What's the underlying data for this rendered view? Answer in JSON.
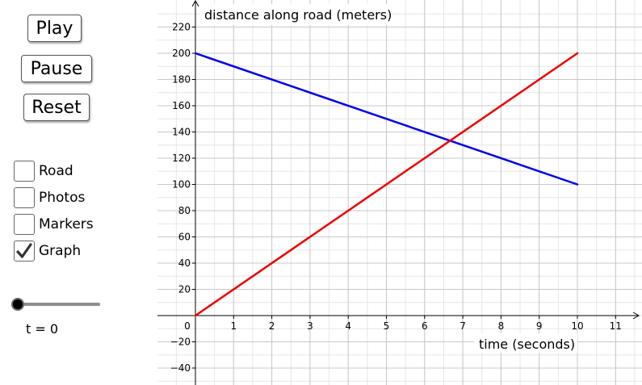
{
  "controls": {
    "play_label": "Play",
    "pause_label": "Pause",
    "reset_label": "Reset"
  },
  "checkboxes": [
    {
      "label": "Road",
      "checked": false
    },
    {
      "label": "Photos",
      "checked": false
    },
    {
      "label": "Markers",
      "checked": false
    },
    {
      "label": "Graph",
      "checked": true
    }
  ],
  "slider": {
    "value": 0,
    "min": 0,
    "max": 10,
    "label": "t = 0"
  },
  "colors": {
    "series_blue": "#0000ee",
    "series_red": "#ee0000",
    "grid": "#c8c8c8",
    "axis": "#000000"
  },
  "chart_data": {
    "type": "line",
    "xlabel": "time (seconds)",
    "ylabel": "distance along road (meters)",
    "x_ticks": [
      0,
      1,
      2,
      3,
      4,
      5,
      6,
      7,
      8,
      9,
      10,
      11
    ],
    "y_ticks": [
      -40,
      -20,
      20,
      40,
      60,
      80,
      100,
      120,
      140,
      160,
      180,
      200,
      220
    ],
    "xlim": [
      -0.5,
      11.8
    ],
    "ylim": [
      -50,
      237
    ],
    "grid": true,
    "series": [
      {
        "color": "#0000ee",
        "points": [
          [
            0,
            200
          ],
          [
            10,
            100
          ]
        ]
      },
      {
        "color": "#ee0000",
        "points": [
          [
            0,
            0
          ],
          [
            10,
            200
          ]
        ]
      }
    ]
  }
}
